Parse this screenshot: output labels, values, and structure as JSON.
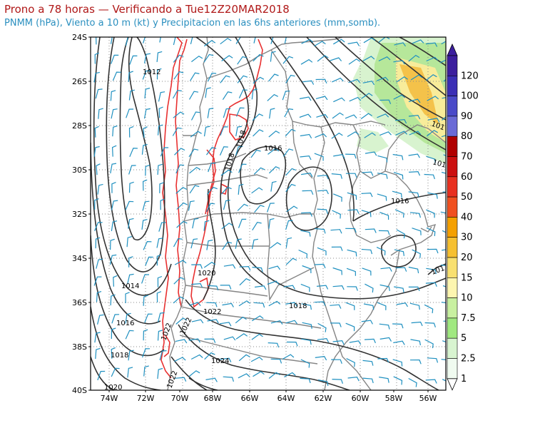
{
  "title_line1": "Prono a 78 horas — Verificando a Tue12Z20MAR2018",
  "title_line2": "PNMM (hPa), Viento a 10 m (kt) y Precipitacion en las 6hs anteriores (mm,somb).",
  "axes": {
    "lat_labels": [
      "24S",
      "26S",
      "28S",
      "30S",
      "32S",
      "34S",
      "36S",
      "38S",
      "40S"
    ],
    "lon_labels": [
      "74W",
      "72W",
      "70W",
      "68W",
      "66W",
      "64W",
      "62W",
      "60W",
      "58W",
      "56W"
    ]
  },
  "isobar_labels": [
    {
      "text": "1012",
      "id": "iso-1012-north"
    },
    {
      "text": "1014",
      "id": "iso-1014-west"
    },
    {
      "text": "1016",
      "id": "iso-1016-west"
    },
    {
      "text": "1018",
      "id": "iso-1018-west"
    },
    {
      "text": "1020",
      "id": "iso-1020-sw"
    },
    {
      "text": "1020",
      "id": "iso-1020-center"
    },
    {
      "text": "1022",
      "id": "iso-1022-a"
    },
    {
      "text": "1022",
      "id": "iso-1022-b"
    },
    {
      "text": "1022",
      "id": "iso-1022-c"
    },
    {
      "text": "1022",
      "id": "iso-1022-d"
    },
    {
      "text": "1024",
      "id": "iso-1024-south"
    },
    {
      "text": "1018",
      "id": "iso-1018-andes-a"
    },
    {
      "text": "1018",
      "id": "iso-1018-andes-b"
    },
    {
      "text": "1016",
      "id": "iso-1016-center"
    },
    {
      "text": "1018",
      "id": "iso-1018-east"
    },
    {
      "text": "1016",
      "id": "iso-1016-east"
    },
    {
      "text": "101",
      "id": "iso-101-ne1"
    },
    {
      "text": "101",
      "id": "iso-101-ne2"
    },
    {
      "text": "101",
      "id": "iso-101-se"
    }
  ],
  "colorbar": {
    "labels": [
      "120",
      "100",
      "90",
      "80",
      "70",
      "60",
      "50",
      "40",
      "30",
      "20",
      "15",
      "10",
      "7.5",
      "5",
      "2.5",
      "1"
    ],
    "colors": [
      "#3c1f9e",
      "#3b2fb5",
      "#4a4ac8",
      "#6a6ad6",
      "#b00000",
      "#cc1010",
      "#e83020",
      "#f05020",
      "#f4a000",
      "#f6c030",
      "#f8e070",
      "#fdf6b0",
      "#c8f0a0",
      "#a0e880",
      "#d8f4d0",
      "#f0fbf0"
    ]
  },
  "colors": {
    "isobar": "#333333",
    "wind": "#1f90c0",
    "topo": "#e83030",
    "border": "#808080",
    "grid": "#888888"
  }
}
